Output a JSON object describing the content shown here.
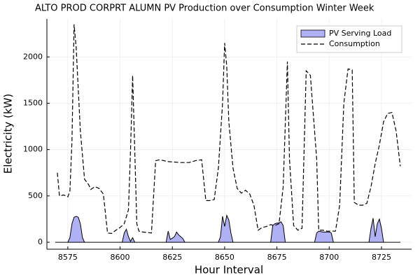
{
  "chart_data": {
    "type": "line",
    "title": "ALTO PROD CORPRT ALUMN PV Production over Consumption Winter Week",
    "xlabel": "Hour Interval",
    "ylabel": "Electricity (kW)",
    "xlim": [
      8565,
      8739.4
    ],
    "ylim": [
      -75,
      2410
    ],
    "xticks": [
      8575,
      8600,
      8625,
      8650,
      8675,
      8700,
      8725
    ],
    "yticks": [
      0,
      500,
      1000,
      1500,
      2000
    ],
    "grid": true,
    "legend": "top-right",
    "series": [
      {
        "name": "PV Serving Load",
        "color": "#b0b0f4",
        "fill": true,
        "x": [
          8569,
          8575,
          8576,
          8577,
          8578,
          8579,
          8580,
          8581,
          8582,
          8583,
          8601,
          8602,
          8603,
          8604,
          8605,
          8606,
          8607,
          8622,
          8623,
          8624,
          8626,
          8627,
          8628,
          8630,
          8631,
          8647,
          8648,
          8649,
          8650,
          8651,
          8652,
          8653,
          8654,
          8672,
          8673,
          8674,
          8676,
          8677,
          8678,
          8679,
          8693,
          8694,
          8695,
          8697,
          8700,
          8701,
          8702,
          8719,
          8720,
          8721,
          8722,
          8723,
          8724,
          8725,
          8726,
          8734
        ],
        "values": [
          0,
          0,
          50,
          200,
          270,
          280,
          270,
          200,
          50,
          0,
          0,
          100,
          140,
          60,
          10,
          50,
          0,
          0,
          120,
          30,
          60,
          110,
          80,
          40,
          0,
          0,
          60,
          280,
          170,
          290,
          240,
          100,
          0,
          0,
          180,
          200,
          210,
          220,
          180,
          0,
          0,
          100,
          120,
          110,
          110,
          100,
          0,
          0,
          150,
          260,
          60,
          200,
          250,
          150,
          0,
          0
        ]
      },
      {
        "name": "Consumption",
        "color": "#000000",
        "dashed": true,
        "x": [
          8570,
          8571,
          8573,
          8575,
          8576,
          8577,
          8578,
          8579,
          8581,
          8583,
          8585,
          8586,
          8588,
          8590,
          8592,
          8594,
          8596,
          8598,
          8600,
          8602,
          8604,
          8605,
          8606,
          8607,
          8608,
          8609,
          8611,
          8615,
          8617,
          8619,
          8623,
          8629,
          8633,
          8636,
          8639,
          8641,
          8643,
          8645,
          8647,
          8649,
          8650,
          8651,
          8652,
          8654,
          8656,
          8658,
          8660,
          8662,
          8664,
          8666,
          8668,
          8670,
          8672,
          8674,
          8676,
          8678,
          8680,
          8681,
          8683,
          8685,
          8687,
          8689,
          8691,
          8692,
          8694,
          8695,
          8697,
          8699,
          8701,
          8703,
          8705,
          8707,
          8709,
          8711,
          8712,
          8714,
          8716,
          8718,
          8720,
          8722,
          8724,
          8726,
          8728,
          8730,
          8732,
          8734
        ],
        "values": [
          750,
          500,
          510,
          490,
          550,
          1100,
          2350,
          2100,
          1200,
          680,
          620,
          570,
          600,
          580,
          520,
          100,
          95,
          130,
          160,
          200,
          350,
          1000,
          1800,
          1000,
          200,
          120,
          110,
          100,
          880,
          890,
          870,
          860,
          860,
          880,
          890,
          450,
          450,
          460,
          800,
          1500,
          2150,
          1900,
          1300,
          800,
          580,
          530,
          560,
          520,
          400,
          130,
          160,
          170,
          190,
          180,
          200,
          600,
          1950,
          900,
          180,
          130,
          150,
          1850,
          1800,
          1500,
          900,
          130,
          130,
          120,
          120,
          120,
          400,
          1500,
          1870,
          1860,
          430,
          400,
          400,
          420,
          600,
          850,
          1050,
          1300,
          1390,
          1400,
          1200,
          820
        ]
      }
    ]
  }
}
